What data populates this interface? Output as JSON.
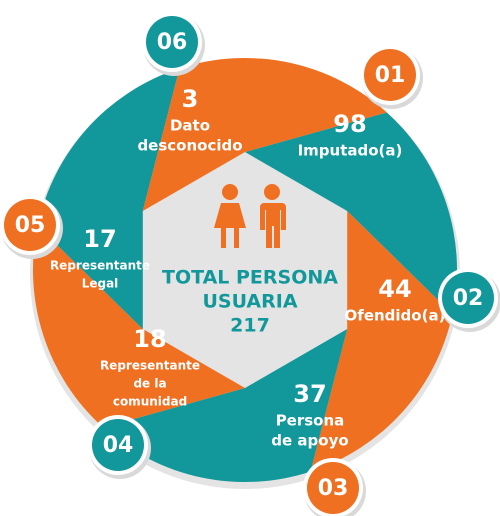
{
  "center": {
    "title_lines": [
      "TOTAL PERSONA",
      "USUARIA"
    ],
    "total": 217
  },
  "segments": [
    {
      "number": "01",
      "value": 98,
      "label_lines": [
        "Imputado(a)"
      ]
    },
    {
      "number": "02",
      "value": 44,
      "label_lines": [
        "Ofendido(a)"
      ]
    },
    {
      "number": "03",
      "value": 37,
      "label_lines": [
        "Persona",
        "de apoyo"
      ]
    },
    {
      "number": "04",
      "value": 18,
      "label_lines": [
        "Representante",
        "de la",
        "comunidad"
      ]
    },
    {
      "number": "05",
      "value": 17,
      "label_lines": [
        "Representante",
        "Legal"
      ]
    },
    {
      "number": "06",
      "value": 3,
      "label_lines": [
        "Dato",
        "desconocido"
      ]
    }
  ]
}
